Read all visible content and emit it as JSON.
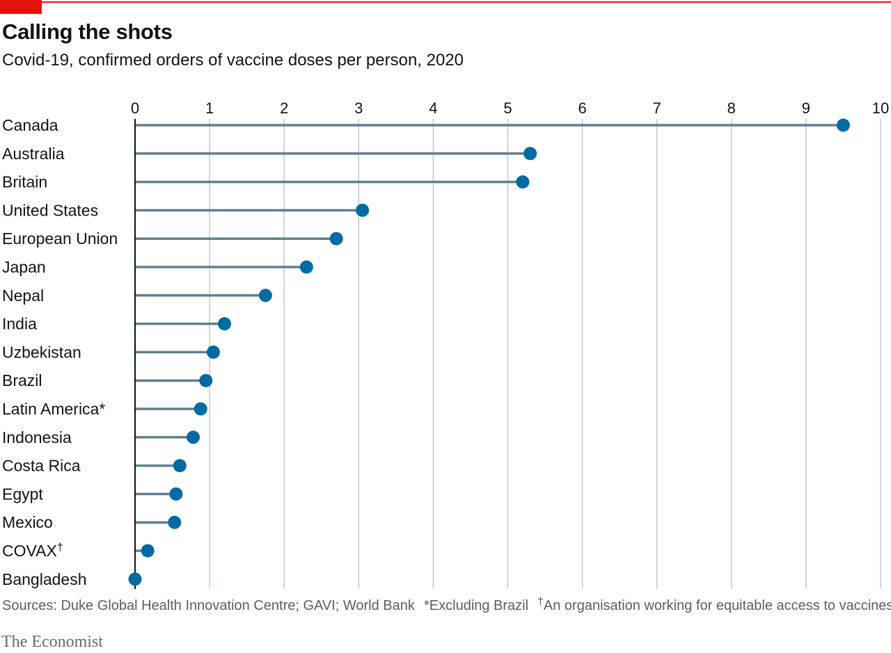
{
  "header": {
    "title": "Calling the shots",
    "subtitle": "Covid-19, confirmed orders of vaccine doses per person, 2020"
  },
  "footer": {
    "sources": "Sources: Duke Global Health Innovation Centre; GAVI; World Bank",
    "note_excluding": "*Excluding Brazil",
    "dagger": "†",
    "note_covax": "An organisation working for equitable access to vaccines"
  },
  "brand": {
    "logo": "The Economist"
  },
  "colors": {
    "accent": "#e3120b",
    "dot": "#006ba2",
    "stem": "#5e7f8f",
    "grid": "#b7c6cf",
    "axis": "#121212"
  },
  "chart_data": {
    "type": "lollipop",
    "title": "Calling the shots",
    "subtitle": "Covid-19, confirmed orders of vaccine doses per person, 2020",
    "xlim": [
      0,
      10
    ],
    "xticks": [
      "0",
      "1",
      "2",
      "3",
      "4",
      "5",
      "6",
      "7",
      "8",
      "9",
      "10"
    ],
    "xlabel": "",
    "ylabel": "",
    "grid": true,
    "categories": [
      {
        "label": "Canada",
        "sup": "",
        "value": 9.5
      },
      {
        "label": "Australia",
        "sup": "",
        "value": 5.3
      },
      {
        "label": "Britain",
        "sup": "",
        "value": 5.2
      },
      {
        "label": "United States",
        "sup": "",
        "value": 3.05
      },
      {
        "label": "European Union",
        "sup": "",
        "value": 2.7
      },
      {
        "label": "Japan",
        "sup": "",
        "value": 2.3
      },
      {
        "label": "Nepal",
        "sup": "",
        "value": 1.75
      },
      {
        "label": "India",
        "sup": "",
        "value": 1.2
      },
      {
        "label": "Uzbekistan",
        "sup": "",
        "value": 1.05
      },
      {
        "label": "Brazil",
        "sup": "",
        "value": 0.95
      },
      {
        "label": "Latin America*",
        "sup": "",
        "value": 0.88
      },
      {
        "label": "Indonesia",
        "sup": "",
        "value": 0.78
      },
      {
        "label": "Costa Rica",
        "sup": "",
        "value": 0.6
      },
      {
        "label": "Egypt",
        "sup": "",
        "value": 0.55
      },
      {
        "label": "Mexico",
        "sup": "",
        "value": 0.53
      },
      {
        "label": "COVAX",
        "sup": "†",
        "value": 0.17
      },
      {
        "label": "Bangladesh",
        "sup": "",
        "value": 0.0
      }
    ]
  }
}
